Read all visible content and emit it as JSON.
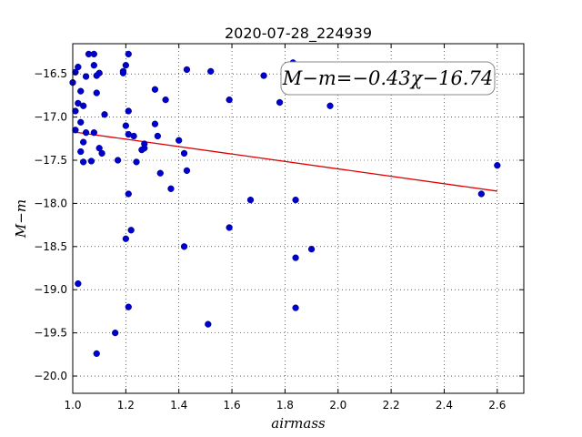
{
  "chart_data": {
    "type": "scatter",
    "title": "2020-07-28_224939",
    "xlabel": "airmass",
    "ylabel": "M−m",
    "xlim": [
      1.0,
      2.7
    ],
    "ylim": [
      -20.2,
      -16.15
    ],
    "y_inverted": true,
    "grid": true,
    "x_ticks": [
      1.0,
      1.2,
      1.4,
      1.6,
      1.8,
      2.0,
      2.2,
      2.4,
      2.6
    ],
    "x_tick_labels": [
      "1.0",
      "1.2",
      "1.4",
      "1.6",
      "1.8",
      "2.0",
      "2.2",
      "2.4",
      "2.6"
    ],
    "y_ticks": [
      -16.5,
      -17.0,
      -17.5,
      -18.0,
      -18.5,
      -19.0,
      -19.5,
      -20.0
    ],
    "y_tick_labels": [
      "−16.5",
      "−17.0",
      "−17.5",
      "−18.0",
      "−18.5",
      "−19.0",
      "−19.5",
      "−20.0"
    ],
    "point_color": "#0000cc",
    "fit_color": "#dd0000",
    "annotation": "M−m=−0.43χ−16.74",
    "annotation_placement": "top-right",
    "fit": {
      "slope": -0.43,
      "intercept": -16.74,
      "x_range": [
        1.0,
        2.6
      ]
    },
    "points": [
      [
        1.0,
        -16.6
      ],
      [
        1.01,
        -16.48
      ],
      [
        1.02,
        -16.42
      ],
      [
        1.02,
        -16.84
      ],
      [
        1.01,
        -16.93
      ],
      [
        1.03,
        -16.7
      ],
      [
        1.04,
        -16.87
      ],
      [
        1.05,
        -16.53
      ],
      [
        1.06,
        -16.27
      ],
      [
        1.08,
        -16.27
      ],
      [
        1.08,
        -16.4
      ],
      [
        1.09,
        -16.52
      ],
      [
        1.1,
        -16.49
      ],
      [
        1.09,
        -16.72
      ],
      [
        1.03,
        -17.06
      ],
      [
        1.01,
        -17.15
      ],
      [
        1.05,
        -17.18
      ],
      [
        1.08,
        -17.18
      ],
      [
        1.04,
        -17.29
      ],
      [
        1.03,
        -17.4
      ],
      [
        1.04,
        -17.52
      ],
      [
        1.07,
        -17.51
      ],
      [
        1.1,
        -17.36
      ],
      [
        1.11,
        -17.42
      ],
      [
        1.12,
        -16.97
      ],
      [
        1.17,
        -17.5
      ],
      [
        1.19,
        -16.47
      ],
      [
        1.19,
        -16.49
      ],
      [
        1.21,
        -16.27
      ],
      [
        1.2,
        -16.4
      ],
      [
        1.21,
        -16.93
      ],
      [
        1.2,
        -17.1
      ],
      [
        1.21,
        -17.2
      ],
      [
        1.23,
        -17.22
      ],
      [
        1.24,
        -17.52
      ],
      [
        1.26,
        -17.38
      ],
      [
        1.27,
        -17.31
      ],
      [
        1.27,
        -17.36
      ],
      [
        1.31,
        -16.68
      ],
      [
        1.31,
        -17.08
      ],
      [
        1.32,
        -17.22
      ],
      [
        1.33,
        -17.65
      ],
      [
        1.35,
        -16.8
      ],
      [
        1.37,
        -17.83
      ],
      [
        1.4,
        -17.27
      ],
      [
        1.42,
        -17.42
      ],
      [
        1.43,
        -17.62
      ],
      [
        1.43,
        -16.45
      ],
      [
        1.52,
        -16.47
      ],
      [
        1.59,
        -16.8
      ],
      [
        1.67,
        -17.96
      ],
      [
        1.72,
        -16.52
      ],
      [
        1.78,
        -16.83
      ],
      [
        1.83,
        -16.37
      ],
      [
        1.84,
        -17.96
      ],
      [
        1.97,
        -16.87
      ],
      [
        1.21,
        -17.89
      ],
      [
        1.2,
        -18.41
      ],
      [
        1.22,
        -18.31
      ],
      [
        1.42,
        -18.5
      ],
      [
        1.59,
        -18.28
      ],
      [
        1.84,
        -18.63
      ],
      [
        1.9,
        -18.53
      ],
      [
        1.02,
        -18.93
      ],
      [
        1.21,
        -19.2
      ],
      [
        1.84,
        -19.21
      ],
      [
        1.51,
        -19.4
      ],
      [
        1.16,
        -19.5
      ],
      [
        1.09,
        -19.74
      ],
      [
        2.54,
        -17.89
      ],
      [
        2.6,
        -17.56
      ]
    ]
  }
}
